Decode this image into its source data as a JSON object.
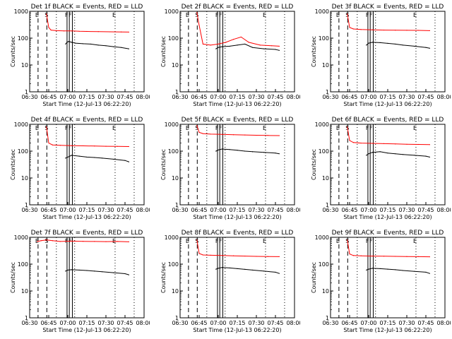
{
  "figure": {
    "xlabel": "Start Time (12-Jul-13 06:22:20)",
    "ylabel": "Counts/sec",
    "x_ticks": [
      "06:30",
      "06:45",
      "07:00",
      "07:15",
      "07:30",
      "07:45",
      "08:00"
    ],
    "y_ticks": [
      "1",
      "10",
      "100",
      "1000"
    ],
    "markers": [
      "E",
      "S",
      "F",
      "F",
      "E"
    ],
    "colors": {
      "events": "#000000",
      "lld": "#ff0000"
    }
  },
  "chart_data": [
    {
      "type": "line",
      "title": "Det 1f BLACK = Events, RED = LLD",
      "xlabel": "Start Time (12-Jul-13 06:22:20)",
      "ylabel": "Counts/sec",
      "yscale": "log",
      "ylim": [
        1,
        1000
      ],
      "series": [
        {
          "name": "Events",
          "color": "#000000",
          "x": [
            6.97,
            6.99,
            7.01,
            7.05,
            7.1,
            7.2,
            7.3,
            7.4,
            7.5,
            7.6,
            7.7,
            7.8
          ],
          "y": [
            60,
            70,
            75,
            70,
            65,
            62,
            60,
            55,
            52,
            48,
            45,
            40
          ]
        },
        {
          "name": "LLD",
          "color": "#ff0000",
          "x": [
            6.72,
            6.75,
            6.78,
            6.85,
            6.95,
            7.05,
            7.15,
            7.25,
            7.4,
            7.55,
            7.7,
            7.8
          ],
          "y": [
            800,
            250,
            200,
            190,
            185,
            185,
            180,
            178,
            175,
            172,
            170,
            168
          ]
        }
      ]
    },
    {
      "type": "line",
      "title": "Det 2f BLACK = Events, RED = LLD",
      "xlabel": "Start Time (12-Jul-13 06:22:20)",
      "ylabel": "Counts/sec",
      "yscale": "log",
      "ylim": [
        1,
        1000
      ],
      "series": [
        {
          "name": "Events",
          "color": "#000000",
          "x": [
            6.97,
            7.0,
            7.05,
            7.15,
            7.25,
            7.35,
            7.45,
            7.6,
            7.75,
            7.8
          ],
          "y": [
            40,
            45,
            48,
            50,
            55,
            60,
            45,
            40,
            38,
            35
          ]
        },
        {
          "name": "LLD",
          "color": "#ff0000",
          "x": [
            6.72,
            6.75,
            6.8,
            6.9,
            7.0,
            7.1,
            7.2,
            7.3,
            7.4,
            7.55,
            7.7,
            7.8
          ],
          "y": [
            900,
            300,
            60,
            55,
            60,
            70,
            90,
            110,
            70,
            55,
            52,
            50
          ]
        }
      ]
    },
    {
      "type": "line",
      "title": "Det 3f BLACK = Events, RED = LLD",
      "xlabel": "Start Time (12-Jul-13 06:22:20)",
      "ylabel": "Counts/sec",
      "yscale": "log",
      "ylim": [
        1,
        1000
      ],
      "series": [
        {
          "name": "Events",
          "color": "#000000",
          "x": [
            6.97,
            7.0,
            7.05,
            7.15,
            7.25,
            7.35,
            7.45,
            7.6,
            7.75,
            7.8
          ],
          "y": [
            55,
            65,
            70,
            68,
            64,
            60,
            55,
            50,
            45,
            42
          ]
        },
        {
          "name": "LLD",
          "color": "#ff0000",
          "x": [
            6.72,
            6.75,
            6.8,
            6.9,
            7.05,
            7.2,
            7.35,
            7.5,
            7.65,
            7.8
          ],
          "y": [
            800,
            250,
            220,
            210,
            205,
            200,
            198,
            196,
            195,
            190
          ]
        }
      ]
    },
    {
      "type": "line",
      "title": "Det 4f BLACK = Events, RED = LLD",
      "xlabel": "Start Time (12-Jul-13 06:22:20)",
      "ylabel": "Counts/sec",
      "yscale": "log",
      "ylim": [
        1,
        1000
      ],
      "series": [
        {
          "name": "Events",
          "color": "#000000",
          "x": [
            6.97,
            7.0,
            7.05,
            7.15,
            7.25,
            7.35,
            7.45,
            7.6,
            7.75,
            7.8
          ],
          "y": [
            55,
            60,
            70,
            65,
            60,
            58,
            55,
            50,
            45,
            40
          ]
        },
        {
          "name": "LLD",
          "color": "#ff0000",
          "x": [
            6.72,
            6.75,
            6.8,
            6.9,
            7.05,
            7.2,
            7.35,
            7.5,
            7.65,
            7.8
          ],
          "y": [
            800,
            200,
            170,
            165,
            160,
            158,
            155,
            152,
            150,
            148
          ]
        }
      ]
    },
    {
      "type": "line",
      "title": "Det 5f BLACK = Events, RED = LLD",
      "xlabel": "Start Time (12-Jul-13 06:22:20)",
      "ylabel": "Counts/sec",
      "yscale": "log",
      "ylim": [
        1,
        1000
      ],
      "series": [
        {
          "name": "Events",
          "color": "#000000",
          "x": [
            6.97,
            7.0,
            7.05,
            7.15,
            7.25,
            7.35,
            7.45,
            7.6,
            7.75,
            7.8
          ],
          "y": [
            100,
            110,
            120,
            115,
            108,
            100,
            95,
            90,
            85,
            80
          ]
        },
        {
          "name": "LLD",
          "color": "#ff0000",
          "x": [
            6.72,
            6.75,
            6.8,
            6.9,
            7.05,
            7.2,
            7.35,
            7.5,
            7.65,
            7.8
          ],
          "y": [
            900,
            500,
            450,
            430,
            420,
            410,
            400,
            390,
            385,
            380
          ]
        }
      ]
    },
    {
      "type": "line",
      "title": "Det 6f BLACK = Events, RED = LLD",
      "xlabel": "Start Time (12-Jul-13 06:22:20)",
      "ylabel": "Counts/sec",
      "yscale": "log",
      "ylim": [
        1,
        1000
      ],
      "series": [
        {
          "name": "Events",
          "color": "#000000",
          "x": [
            6.97,
            7.0,
            7.05,
            7.15,
            7.25,
            7.35,
            7.45,
            7.6,
            7.75,
            7.8
          ],
          "y": [
            70,
            80,
            90,
            95,
            85,
            80,
            75,
            70,
            65,
            60
          ]
        },
        {
          "name": "LLD",
          "color": "#ff0000",
          "x": [
            6.72,
            6.75,
            6.8,
            6.9,
            7.05,
            7.2,
            7.35,
            7.5,
            7.65,
            7.8
          ],
          "y": [
            800,
            250,
            210,
            200,
            195,
            190,
            185,
            180,
            178,
            175
          ]
        }
      ]
    },
    {
      "type": "line",
      "title": "Det 7f BLACK = Events, RED = LLD",
      "xlabel": "Start Time (12-Jul-13 06:22:20)",
      "ylabel": "Counts/sec",
      "yscale": "log",
      "ylim": [
        1,
        1000
      ],
      "series": [
        {
          "name": "Events",
          "color": "#000000",
          "x": [
            6.97,
            7.0,
            7.05,
            7.15,
            7.25,
            7.35,
            7.45,
            7.6,
            7.75,
            7.8
          ],
          "y": [
            55,
            60,
            62,
            60,
            58,
            55,
            52,
            48,
            44,
            40
          ]
        },
        {
          "name": "LLD",
          "color": "#ff0000",
          "x": [
            6.6,
            6.65,
            6.72,
            6.8,
            6.9,
            7.05,
            7.2,
            7.35,
            7.5,
            7.65,
            7.8
          ],
          "y": [
            700,
            750,
            800,
            750,
            700,
            720,
            710,
            700,
            690,
            700,
            680
          ]
        }
      ]
    },
    {
      "type": "line",
      "title": "Det 8f BLACK = Events, RED = LLD",
      "xlabel": "Start Time (12-Jul-13 06:22:20)",
      "ylabel": "Counts/sec",
      "yscale": "log",
      "ylim": [
        1,
        1000
      ],
      "series": [
        {
          "name": "Events",
          "color": "#000000",
          "x": [
            6.97,
            7.0,
            7.05,
            7.15,
            7.25,
            7.35,
            7.45,
            7.6,
            7.75,
            7.8
          ],
          "y": [
            65,
            70,
            75,
            72,
            68,
            64,
            60,
            55,
            50,
            45
          ]
        },
        {
          "name": "LLD",
          "color": "#ff0000",
          "x": [
            6.72,
            6.75,
            6.8,
            6.9,
            7.05,
            7.2,
            7.35,
            7.5,
            7.65,
            7.8
          ],
          "y": [
            800,
            250,
            220,
            215,
            210,
            205,
            200,
            195,
            192,
            190
          ]
        }
      ]
    },
    {
      "type": "line",
      "title": "Det 9f BLACK = Events, RED = LLD",
      "xlabel": "Start Time (12-Jul-13 06:22:20)",
      "ylabel": "Counts/sec",
      "yscale": "log",
      "ylim": [
        1,
        1000
      ],
      "series": [
        {
          "name": "Events",
          "color": "#000000",
          "x": [
            6.97,
            7.0,
            7.05,
            7.15,
            7.25,
            7.35,
            7.45,
            7.6,
            7.75,
            7.8
          ],
          "y": [
            60,
            65,
            70,
            68,
            65,
            62,
            58,
            54,
            50,
            45
          ]
        },
        {
          "name": "LLD",
          "color": "#ff0000",
          "x": [
            6.72,
            6.75,
            6.8,
            6.9,
            7.05,
            7.2,
            7.35,
            7.5,
            7.65,
            7.8
          ],
          "y": [
            800,
            240,
            210,
            205,
            200,
            198,
            195,
            192,
            190,
            188
          ]
        }
      ]
    }
  ]
}
